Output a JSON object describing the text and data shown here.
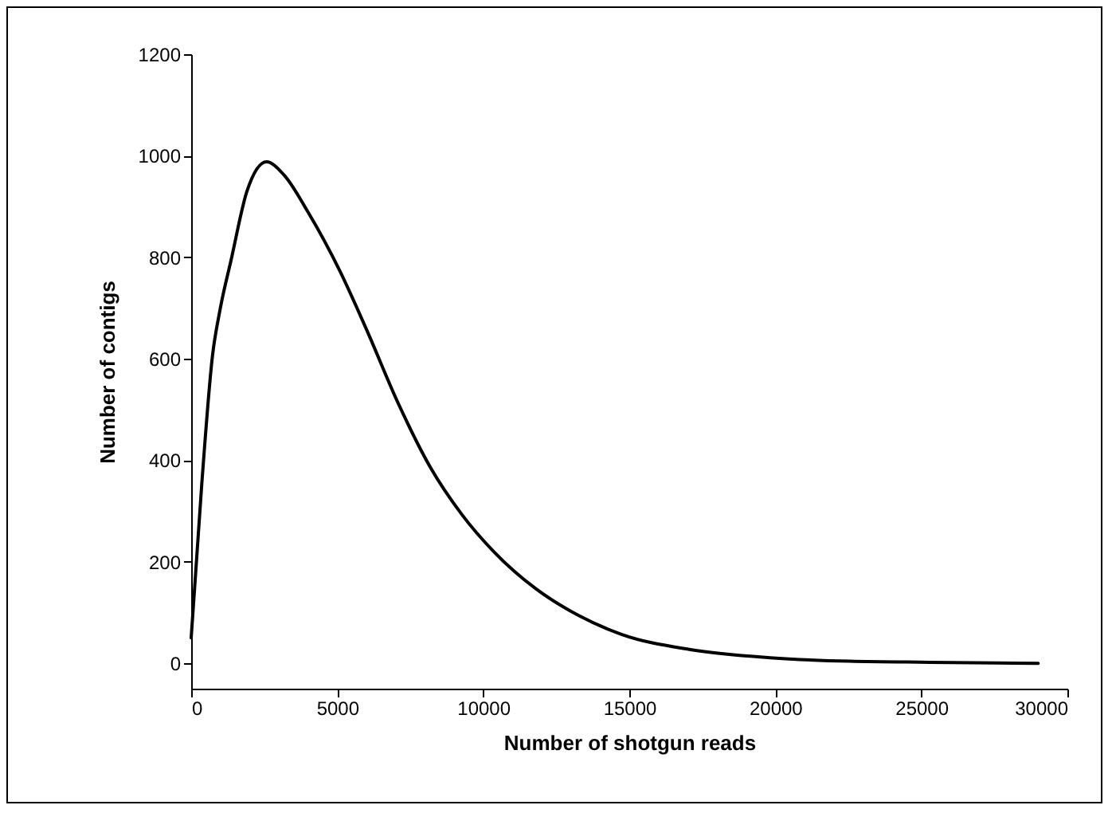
{
  "chart_data": {
    "type": "line",
    "xlabel": "Number of shotgun reads",
    "ylabel": "Number of contigs",
    "x": [
      0,
      365,
      730,
      1000,
      1365,
      1910,
      2580,
      3180,
      4000,
      5090,
      6000,
      7090,
      8180,
      9270,
      10360,
      11820,
      13270,
      14730,
      17090,
      19820,
      22550,
      25270,
      29000
    ],
    "series": [
      {
        "color": "#000000",
        "values": [
          50,
          355,
          606,
          700,
          794,
          930,
          988,
          962,
          889,
          773,
          658,
          512,
          387,
          293,
          220,
          146,
          94,
          57,
          27,
          11,
          4,
          2,
          0
        ]
      }
    ],
    "xlim": [
      0,
      30000
    ],
    "xticks": [
      0,
      5000,
      10000,
      15000,
      20000,
      25000,
      30000
    ],
    "ylim": [
      -50,
      1200
    ],
    "yticks": [
      0,
      200,
      400,
      600,
      800,
      1000,
      1200
    ],
    "grid": false,
    "marker": "none",
    "line_style": "solid",
    "legend": false
  }
}
